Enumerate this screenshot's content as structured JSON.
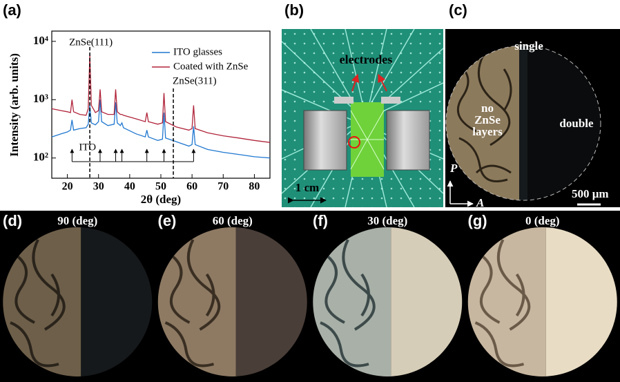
{
  "chart_data": {
    "type": "line",
    "panel_label": "(a)",
    "ylabel": "Intensity (arb. units)",
    "xlabel": "2θ (deg)",
    "xlim": [
      15,
      85
    ],
    "ylim": [
      45,
      15000
    ],
    "yscale": "log",
    "xticks": [
      20,
      30,
      40,
      50,
      60,
      70,
      80
    ],
    "yticks": [
      {
        "value": 100,
        "label": "10²"
      },
      {
        "value": 1000,
        "label": "10³"
      },
      {
        "value": 10000,
        "label": "10⁴"
      }
    ],
    "legend": "upper right",
    "x": [
      15,
      18,
      20,
      21,
      21.5,
      22,
      24,
      26,
      26.7,
      27.2,
      27.7,
      29,
      30,
      30.5,
      31,
      33,
      35,
      35.5,
      36,
      37,
      37.5,
      38,
      42,
      45,
      45.5,
      46,
      49,
      50.5,
      51,
      51.5,
      55,
      59,
      60,
      60.5,
      61,
      65,
      70,
      75,
      80,
      85
    ],
    "series": [
      {
        "name": "ITO glasses",
        "color": "#1f77d0",
        "values": [
          230,
          260,
          280,
          300,
          450,
          300,
          320,
          330,
          380,
          800,
          400,
          370,
          420,
          1000,
          420,
          360,
          380,
          900,
          400,
          360,
          400,
          330,
          260,
          230,
          300,
          230,
          200,
          210,
          600,
          220,
          190,
          160,
          170,
          350,
          170,
          140,
          125,
          115,
          105,
          100
        ]
      },
      {
        "name": "Coated with ZnSe",
        "color": "#b0243a",
        "values": [
          700,
          650,
          620,
          600,
          1000,
          620,
          560,
          540,
          700,
          6000,
          800,
          600,
          650,
          1500,
          620,
          560,
          560,
          1500,
          620,
          560,
          560,
          540,
          470,
          420,
          600,
          420,
          380,
          400,
          1300,
          420,
          340,
          300,
          320,
          800,
          320,
          270,
          240,
          220,
          200,
          185
        ]
      }
    ],
    "annotations": [
      {
        "text": "ZnSe(111)",
        "x": 27.2
      },
      {
        "text": "ZnSe(311)",
        "x": 54
      }
    ],
    "ito_label": "ITO",
    "ito_arrows": [
      21.5,
      30.5,
      35.5,
      37.5,
      45.5,
      51,
      60.5
    ]
  },
  "photos": {
    "b": {
      "label": "(b)",
      "electrodes": "electrodes",
      "scale": "1 cm"
    },
    "c": {
      "label": "(c)",
      "single": "single",
      "no_layers": [
        "no",
        "ZnSe",
        "layers"
      ],
      "double": "double",
      "p": "P",
      "a": "A",
      "scale": "500 μm"
    },
    "rotations": [
      {
        "label": "(d)",
        "angle": "90 (deg)"
      },
      {
        "label": "(e)",
        "angle": "60 (deg)"
      },
      {
        "label": "(f)",
        "angle": "30 (deg)"
      },
      {
        "label": "(g)",
        "angle": "0 (deg)"
      }
    ]
  }
}
